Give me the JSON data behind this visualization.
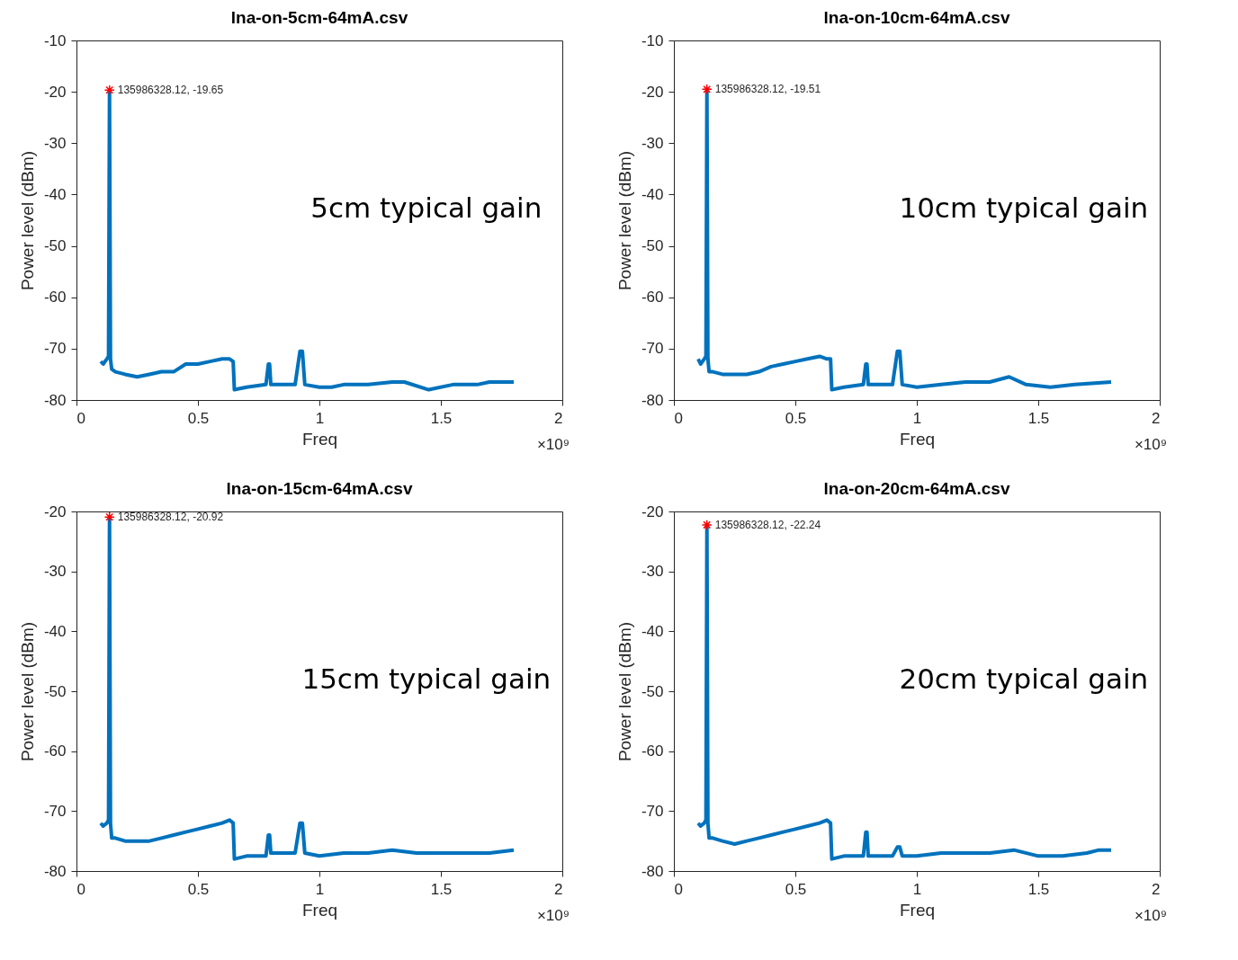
{
  "chart_data": [
    {
      "type": "line",
      "title": "lna-on-5cm-64mA.csv",
      "xlabel": "Freq",
      "ylabel": "Power level (dBm)",
      "xlim": [
        0,
        2
      ],
      "xticks": [
        0,
        0.5,
        1,
        1.5,
        2
      ],
      "ylim": [
        -80,
        -10
      ],
      "yticks": [
        -80,
        -70,
        -60,
        -50,
        -40,
        -30,
        -20,
        -10
      ],
      "grid": false,
      "line_style": "solid",
      "marker": "none",
      "annotations": [
        "5cm typical gain",
        "135986328.12, -19.65",
        "×10⁹"
      ],
      "series": [
        {
          "color": "#0072bd",
          "x": [
            0.1,
            0.11,
            0.125,
            0.132,
            0.136,
            0.14,
            0.145,
            0.16,
            0.2,
            0.25,
            0.3,
            0.35,
            0.4,
            0.45,
            0.5,
            0.55,
            0.6,
            0.63,
            0.645,
            0.65,
            0.7,
            0.78,
            0.79,
            0.795,
            0.8,
            0.9,
            0.92,
            0.93,
            0.94,
            1.0,
            1.05,
            1.1,
            1.2,
            1.3,
            1.35,
            1.45,
            1.55,
            1.65,
            1.7,
            1.8
          ],
          "values": [
            -72.5,
            -73,
            -72,
            -71.5,
            -19.65,
            -72,
            -74,
            -74.5,
            -75,
            -75.5,
            -75,
            -74.5,
            -74.5,
            -73,
            -73,
            -72.5,
            -72,
            -72,
            -72.5,
            -78,
            -77.5,
            -77,
            -73,
            -73,
            -77,
            -77,
            -70.5,
            -70.5,
            -77,
            -77.5,
            -77.5,
            -77,
            -77,
            -76.5,
            -76.5,
            -78,
            -77,
            -77,
            -76.5,
            -76.5
          ]
        },
        {
          "type": "scatter",
          "color": "#ff0000",
          "marker": "cross",
          "x": [
            0.136
          ],
          "values": [
            -19.65
          ]
        }
      ]
    },
    {
      "type": "line",
      "title": "lna-on-10cm-64mA.csv",
      "xlabel": "Freq",
      "ylabel": "Power level (dBm)",
      "xlim": [
        0,
        2
      ],
      "xticks": [
        0,
        0.5,
        1,
        1.5,
        2
      ],
      "ylim": [
        -80,
        -10
      ],
      "yticks": [
        -80,
        -70,
        -60,
        -50,
        -40,
        -30,
        -20,
        -10
      ],
      "grid": false,
      "line_style": "solid",
      "marker": "none",
      "annotations": [
        "10cm typical gain",
        "135986328.12, -19.51",
        "×10⁹"
      ],
      "series": [
        {
          "color": "#0072bd",
          "x": [
            0.1,
            0.11,
            0.125,
            0.132,
            0.136,
            0.14,
            0.145,
            0.16,
            0.2,
            0.25,
            0.3,
            0.35,
            0.4,
            0.45,
            0.5,
            0.55,
            0.6,
            0.63,
            0.645,
            0.65,
            0.7,
            0.78,
            0.79,
            0.795,
            0.8,
            0.9,
            0.92,
            0.93,
            0.94,
            1.0,
            1.1,
            1.2,
            1.3,
            1.38,
            1.45,
            1.55,
            1.65,
            1.8
          ],
          "values": [
            -72,
            -73,
            -72,
            -71.5,
            -19.51,
            -72,
            -74.5,
            -74.5,
            -75,
            -75,
            -75,
            -74.5,
            -73.5,
            -73,
            -72.5,
            -72,
            -71.5,
            -72,
            -72,
            -78,
            -77.5,
            -77,
            -73,
            -73,
            -77,
            -77,
            -70.5,
            -70.5,
            -77,
            -77.5,
            -77,
            -76.5,
            -76.5,
            -75.5,
            -77,
            -77.5,
            -77,
            -76.5
          ]
        },
        {
          "type": "scatter",
          "color": "#ff0000",
          "marker": "cross",
          "x": [
            0.136
          ],
          "values": [
            -19.51
          ]
        }
      ]
    },
    {
      "type": "line",
      "title": "lna-on-15cm-64mA.csv",
      "xlabel": "Freq",
      "ylabel": "Power level (dBm)",
      "xlim": [
        0,
        2
      ],
      "xticks": [
        0,
        0.5,
        1,
        1.5,
        2
      ],
      "ylim": [
        -80,
        -20
      ],
      "yticks": [
        -80,
        -70,
        -60,
        -50,
        -40,
        -30,
        -20
      ],
      "grid": false,
      "line_style": "solid",
      "marker": "none",
      "annotations": [
        "15cm typical gain",
        "135986328.12, -20.92",
        "×10⁹"
      ],
      "series": [
        {
          "color": "#0072bd",
          "x": [
            0.1,
            0.11,
            0.125,
            0.132,
            0.136,
            0.14,
            0.145,
            0.16,
            0.2,
            0.25,
            0.3,
            0.35,
            0.4,
            0.45,
            0.5,
            0.55,
            0.6,
            0.63,
            0.645,
            0.65,
            0.7,
            0.78,
            0.79,
            0.795,
            0.8,
            0.9,
            0.92,
            0.93,
            0.94,
            1.0,
            1.1,
            1.2,
            1.3,
            1.4,
            1.5,
            1.6,
            1.7,
            1.8
          ],
          "values": [
            -72,
            -72.5,
            -72,
            -71.5,
            -20.92,
            -72,
            -74.5,
            -74.5,
            -75,
            -75,
            -75,
            -74.5,
            -74,
            -73.5,
            -73,
            -72.5,
            -72,
            -71.5,
            -72,
            -78,
            -77.5,
            -77.5,
            -74,
            -74,
            -77,
            -77,
            -72,
            -72,
            -77,
            -77.5,
            -77,
            -77,
            -76.5,
            -77,
            -77,
            -77,
            -77,
            -76.5
          ]
        },
        {
          "type": "scatter",
          "color": "#ff0000",
          "marker": "cross",
          "x": [
            0.136
          ],
          "values": [
            -20.92
          ]
        }
      ]
    },
    {
      "type": "line",
      "title": "lna-on-20cm-64mA.csv",
      "xlabel": "Freq",
      "ylabel": "Power level (dBm)",
      "xlim": [
        0,
        2
      ],
      "xticks": [
        0,
        0.5,
        1,
        1.5,
        2
      ],
      "ylim": [
        -80,
        -20
      ],
      "yticks": [
        -80,
        -70,
        -60,
        -50,
        -40,
        -30,
        -20
      ],
      "grid": false,
      "line_style": "solid",
      "marker": "none",
      "annotations": [
        "20cm typical gain",
        "135986328.12, -22.24",
        "×10⁹"
      ],
      "series": [
        {
          "color": "#0072bd",
          "x": [
            0.1,
            0.11,
            0.125,
            0.132,
            0.136,
            0.14,
            0.145,
            0.16,
            0.2,
            0.25,
            0.3,
            0.35,
            0.4,
            0.45,
            0.5,
            0.55,
            0.6,
            0.63,
            0.645,
            0.65,
            0.7,
            0.78,
            0.79,
            0.795,
            0.8,
            0.9,
            0.92,
            0.93,
            0.94,
            1.0,
            1.1,
            1.2,
            1.3,
            1.4,
            1.5,
            1.6,
            1.7,
            1.75,
            1.8
          ],
          "values": [
            -72,
            -72.5,
            -72,
            -71.5,
            -22.24,
            -72,
            -74.5,
            -74.5,
            -75,
            -75.5,
            -75,
            -74.5,
            -74,
            -73.5,
            -73,
            -72.5,
            -72,
            -71.5,
            -72,
            -78,
            -77.5,
            -77.5,
            -73.5,
            -73.5,
            -77.5,
            -77.5,
            -76,
            -76,
            -77.5,
            -77.5,
            -77,
            -77,
            -77,
            -76.5,
            -77.5,
            -77.5,
            -77,
            -76.5,
            -76.5
          ]
        },
        {
          "type": "scatter",
          "color": "#ff0000",
          "marker": "cross",
          "x": [
            0.136
          ],
          "values": [
            -22.24
          ]
        }
      ]
    }
  ]
}
